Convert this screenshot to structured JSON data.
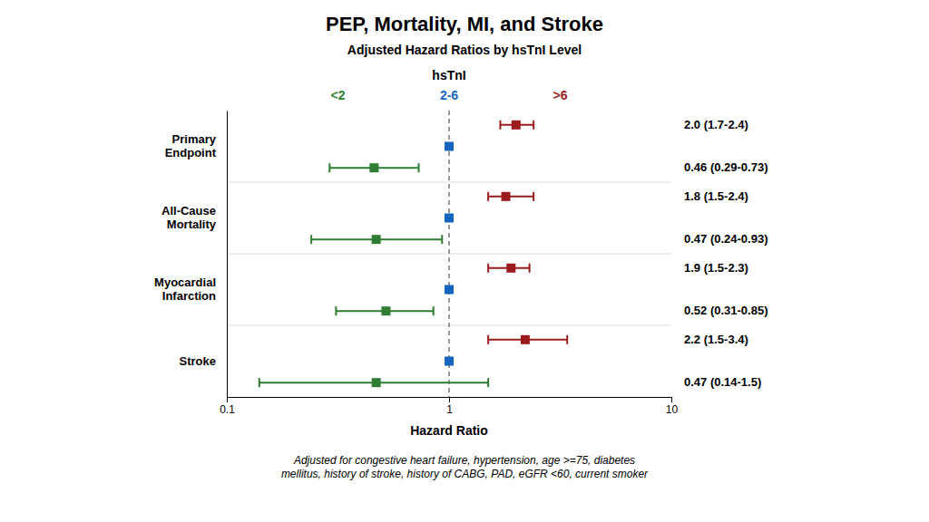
{
  "chart_data": {
    "type": "forest",
    "title": "PEP, Mortality, MI, and Stroke",
    "subtitle": "Adjusted Hazard Ratios by hsTnI Level",
    "xlabel": "Hazard Ratio",
    "footnote": "Adjusted for congestive heart failure, hypertension, age >=75, diabetes\nmellitus, history of stroke, history of CABG, PAD, eGFR <60, current smoker",
    "categories": [
      "Primary\nEndpoint",
      "All-Cause\nMortality",
      "Myocardial\nInfarction",
      "Stroke"
    ],
    "legend_title": "hsTnI",
    "legend": "top",
    "log": "x",
    "grid": false,
    "xlim": [
      0.1,
      10
    ],
    "xticks": [
      0.1,
      1,
      10
    ],
    "reference_line": 1,
    "series": [
      {
        "name": "<2",
        "color": "#2e7d32",
        "marker": "square",
        "values": [
          0.46,
          0.47,
          0.52,
          0.47
        ],
        "lo": [
          0.29,
          0.24,
          0.31,
          0.14
        ],
        "hi": [
          0.73,
          0.93,
          0.85,
          1.5
        ],
        "value_labels": [
          "0.46 (0.29-0.73)",
          "0.47 (0.24-0.93)",
          "0.52 (0.31-0.85)",
          "0.47 (0.14-1.5)"
        ]
      },
      {
        "name": "2-6",
        "color": "#1565c0",
        "marker": "square",
        "values": [
          1.0,
          1.0,
          1.0,
          1.0
        ]
      },
      {
        "name": ">6",
        "color": "#9b1c1c",
        "marker": "square",
        "values": [
          2.0,
          1.8,
          1.9,
          2.2
        ],
        "lo": [
          1.7,
          1.5,
          1.5,
          1.5
        ],
        "hi": [
          2.4,
          2.4,
          2.3,
          3.4
        ],
        "value_labels": [
          "2.0 (1.7-2.4)",
          "1.8 (1.5-2.4)",
          "1.9 (1.5-2.3)",
          "2.2 (1.5-3.4)"
        ]
      }
    ]
  }
}
